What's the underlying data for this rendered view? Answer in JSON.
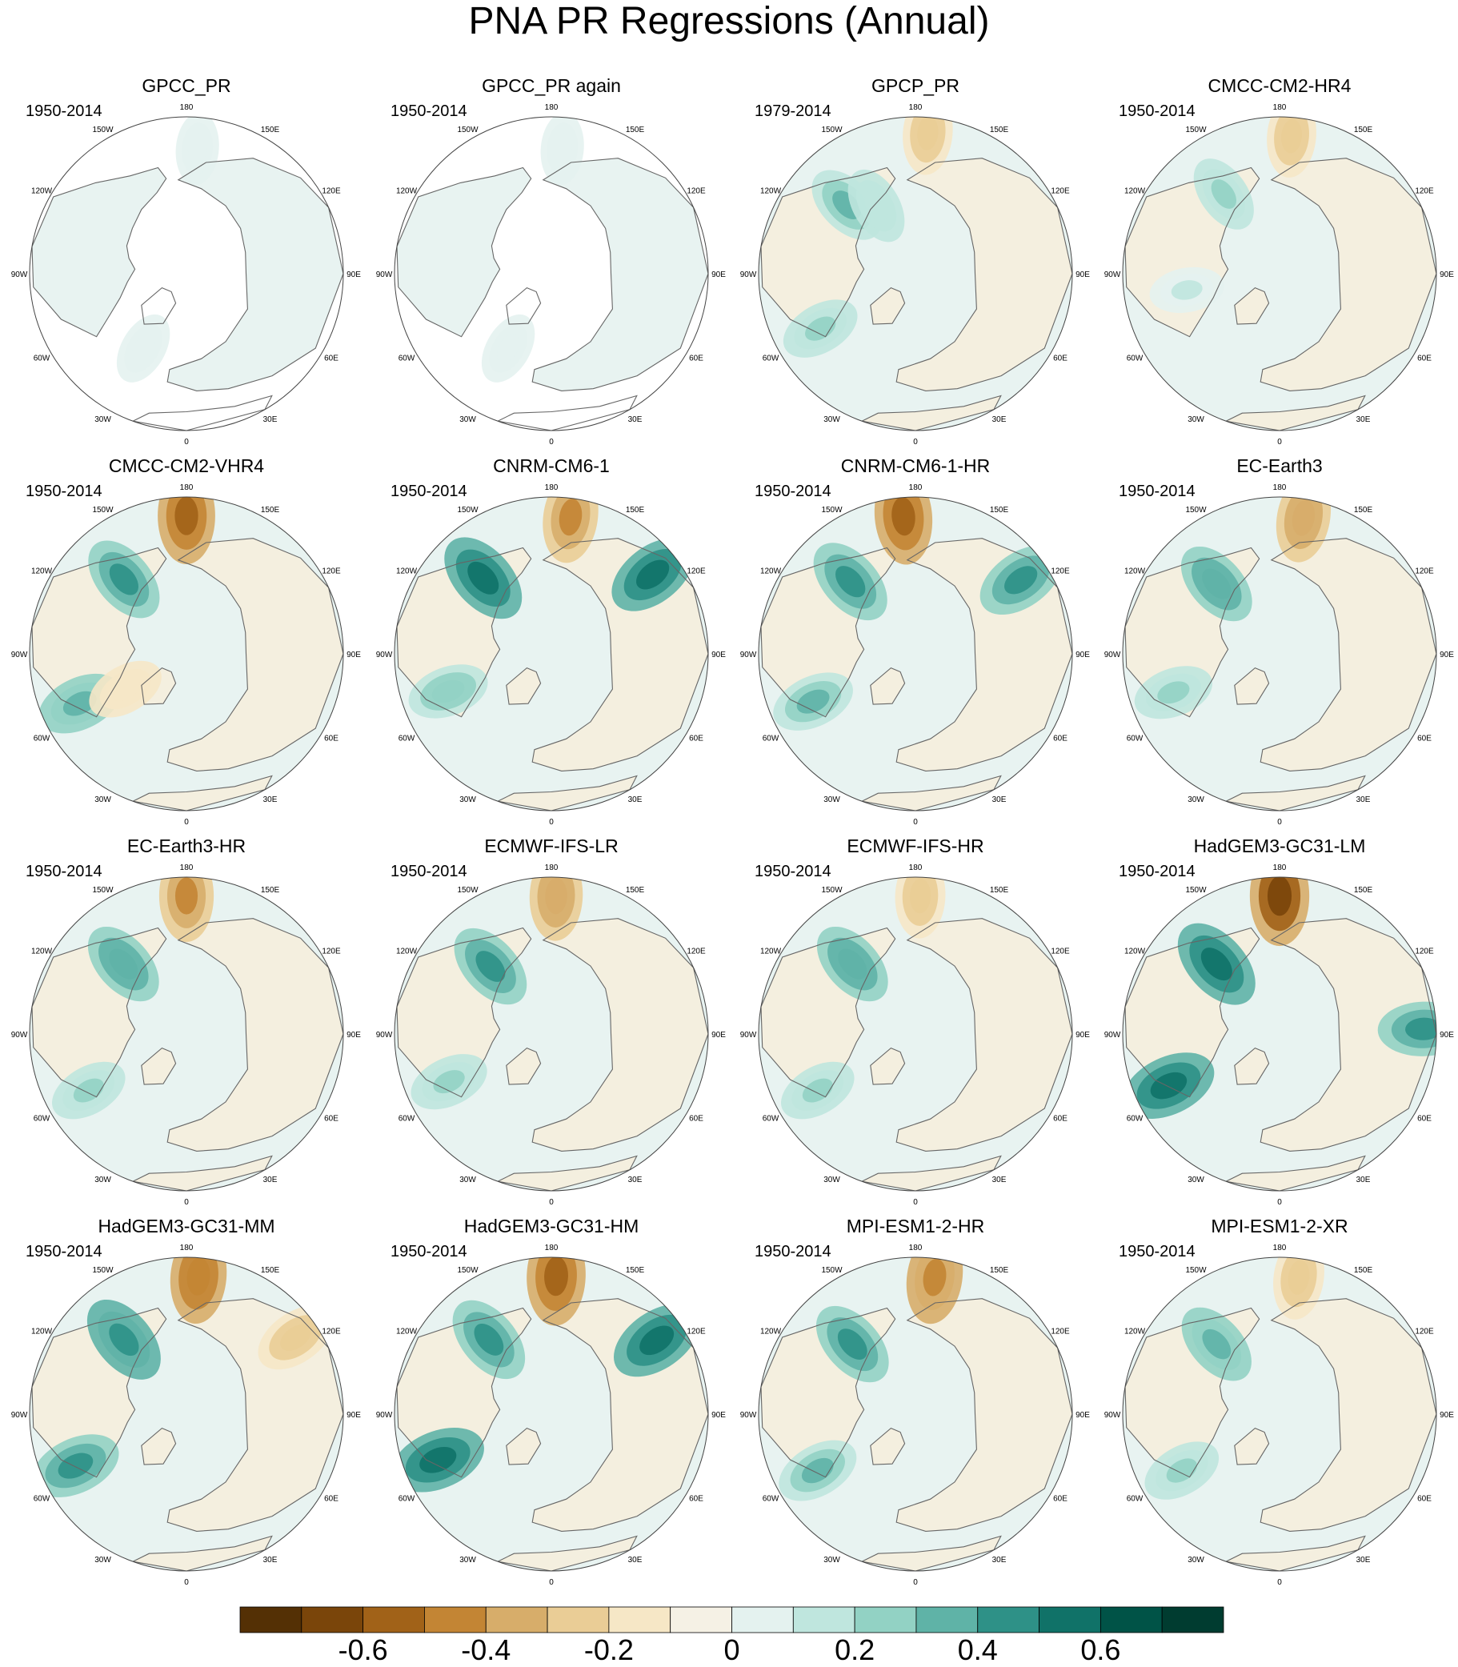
{
  "title": "PNA PR Regressions (Annual)",
  "colors": {
    "palette": [
      "#543005",
      "#7a450a",
      "#a16218",
      "#c38534",
      "#d7ad6a",
      "#eacd96",
      "#f6e7c6",
      "#f5f1e5",
      "#e4f2ef",
      "#bfe6de",
      "#92d2c4",
      "#5fb3a7",
      "#2e9187",
      "#107268",
      "#005347",
      "#003c30"
    ],
    "ocean": "#e8f3f1",
    "land_tint": "#f5eedd",
    "coast": "#666666"
  },
  "chart_data": {
    "type": "polar-stereographic-contour-panels",
    "variable": "PR",
    "season": "Annual",
    "colorbar": {
      "tick_labels": [
        "-0.6",
        "-0.4",
        "-0.2",
        "0",
        "0.2",
        "0.4",
        "0.6"
      ],
      "tick_values": [
        -0.6,
        -0.4,
        -0.2,
        0,
        0.2,
        0.4,
        0.6
      ],
      "range": [
        -0.8,
        0.8
      ],
      "n_bins": 16
    },
    "longitude_labels": [
      "180",
      "150E",
      "120E",
      "90E",
      "60E",
      "30E",
      "0",
      "30W",
      "60W",
      "90W",
      "120W",
      "150W"
    ],
    "panels": [
      {
        "name": "GPCC_PR",
        "years": "1950-2014",
        "land_only": true,
        "features": [
          {
            "lon": 175,
            "r": 0.8,
            "v": 0.05
          },
          {
            "lon": 330,
            "r": 0.55,
            "v": 0.08
          }
        ]
      },
      {
        "name": "GPCC_PR again",
        "years": "1950-2014",
        "land_only": true,
        "features": [
          {
            "lon": 175,
            "r": 0.8,
            "v": 0.05
          },
          {
            "lon": 330,
            "r": 0.55,
            "v": 0.08
          }
        ]
      },
      {
        "name": "GPCP_PR",
        "years": "1979-2014",
        "land_only": false,
        "features": [
          {
            "lon": 175,
            "r": 0.9,
            "v": -0.28
          },
          {
            "lon": 225,
            "r": 0.62,
            "v": 0.3
          },
          {
            "lon": 300,
            "r": 0.7,
            "v": 0.22
          },
          {
            "lon": 210,
            "r": 0.5,
            "v": 0.18
          }
        ]
      },
      {
        "name": "CMCC-CM2-HR4",
        "years": "1950-2014",
        "land_only": false,
        "features": [
          {
            "lon": 175,
            "r": 0.88,
            "v": -0.26
          },
          {
            "lon": 215,
            "r": 0.62,
            "v": 0.2
          },
          {
            "lon": 280,
            "r": 0.6,
            "v": 0.1
          }
        ]
      },
      {
        "name": "CMCC-CM2-VHR4",
        "years": "1950-2014",
        "land_only": false,
        "features": [
          {
            "lon": 180,
            "r": 0.88,
            "v": -0.55
          },
          {
            "lon": 220,
            "r": 0.62,
            "v": 0.42
          },
          {
            "lon": 295,
            "r": 0.75,
            "v": 0.35
          },
          {
            "lon": 300,
            "r": 0.45,
            "v": -0.18
          }
        ]
      },
      {
        "name": "CNRM-CM6-1",
        "years": "1950-2014",
        "land_only": false,
        "features": [
          {
            "lon": 172,
            "r": 0.88,
            "v": -0.45
          },
          {
            "lon": 222,
            "r": 0.65,
            "v": 0.55
          },
          {
            "lon": 128,
            "r": 0.82,
            "v": 0.5
          },
          {
            "lon": 290,
            "r": 0.7,
            "v": 0.25
          }
        ]
      },
      {
        "name": "CNRM-CM6-1-HR",
        "years": "1950-2014",
        "land_only": false,
        "features": [
          {
            "lon": 185,
            "r": 0.88,
            "v": -0.55
          },
          {
            "lon": 222,
            "r": 0.62,
            "v": 0.45
          },
          {
            "lon": 125,
            "r": 0.82,
            "v": 0.45
          },
          {
            "lon": 295,
            "r": 0.72,
            "v": 0.3
          }
        ]
      },
      {
        "name": "EC-Earth3",
        "years": "1950-2014",
        "land_only": false,
        "features": [
          {
            "lon": 170,
            "r": 0.88,
            "v": -0.4
          },
          {
            "lon": 222,
            "r": 0.6,
            "v": 0.38
          },
          {
            "lon": 290,
            "r": 0.72,
            "v": 0.22
          }
        ]
      },
      {
        "name": "EC-Earth3-HR",
        "years": "1950-2014",
        "land_only": false,
        "features": [
          {
            "lon": 180,
            "r": 0.88,
            "v": -0.45
          },
          {
            "lon": 222,
            "r": 0.6,
            "v": 0.38
          },
          {
            "lon": 300,
            "r": 0.72,
            "v": 0.2
          }
        ]
      },
      {
        "name": "ECMWF-IFS-LR",
        "years": "1950-2014",
        "land_only": false,
        "features": [
          {
            "lon": 178,
            "r": 0.88,
            "v": -0.4
          },
          {
            "lon": 222,
            "r": 0.58,
            "v": 0.42
          },
          {
            "lon": 295,
            "r": 0.72,
            "v": 0.22
          }
        ]
      },
      {
        "name": "ECMWF-IFS-HR",
        "years": "1950-2014",
        "land_only": false,
        "features": [
          {
            "lon": 178,
            "r": 0.88,
            "v": -0.3
          },
          {
            "lon": 222,
            "r": 0.6,
            "v": 0.38
          },
          {
            "lon": 300,
            "r": 0.72,
            "v": 0.2
          }
        ]
      },
      {
        "name": "HadGEM3-GC31-LM",
        "years": "1950-2014",
        "land_only": false,
        "features": [
          {
            "lon": 180,
            "r": 0.88,
            "v": -0.62
          },
          {
            "lon": 222,
            "r": 0.6,
            "v": 0.55
          },
          {
            "lon": 295,
            "r": 0.78,
            "v": 0.55
          },
          {
            "lon": 92,
            "r": 0.92,
            "v": 0.45
          }
        ]
      },
      {
        "name": "HadGEM3-GC31-MM",
        "years": "1950-2014",
        "land_only": false,
        "features": [
          {
            "lon": 175,
            "r": 0.88,
            "v": -0.5
          },
          {
            "lon": 220,
            "r": 0.62,
            "v": 0.48
          },
          {
            "lon": 295,
            "r": 0.78,
            "v": 0.45
          },
          {
            "lon": 125,
            "r": 0.85,
            "v": -0.3
          }
        ]
      },
      {
        "name": "HadGEM3-GC31-HM",
        "years": "1950-2014",
        "land_only": false,
        "features": [
          {
            "lon": 178,
            "r": 0.88,
            "v": -0.6
          },
          {
            "lon": 220,
            "r": 0.62,
            "v": 0.45
          },
          {
            "lon": 125,
            "r": 0.82,
            "v": 0.55
          },
          {
            "lon": 292,
            "r": 0.78,
            "v": 0.55
          }
        ]
      },
      {
        "name": "MPI-ESM1-2-HR",
        "years": "1950-2014",
        "land_only": false,
        "features": [
          {
            "lon": 172,
            "r": 0.88,
            "v": -0.48
          },
          {
            "lon": 222,
            "r": 0.6,
            "v": 0.42
          },
          {
            "lon": 300,
            "r": 0.72,
            "v": 0.3
          }
        ]
      },
      {
        "name": "MPI-ESM1-2-XR",
        "years": "1950-2014",
        "land_only": false,
        "features": [
          {
            "lon": 172,
            "r": 0.88,
            "v": -0.3
          },
          {
            "lon": 222,
            "r": 0.6,
            "v": 0.35
          },
          {
            "lon": 300,
            "r": 0.72,
            "v": 0.22
          }
        ]
      }
    ]
  }
}
